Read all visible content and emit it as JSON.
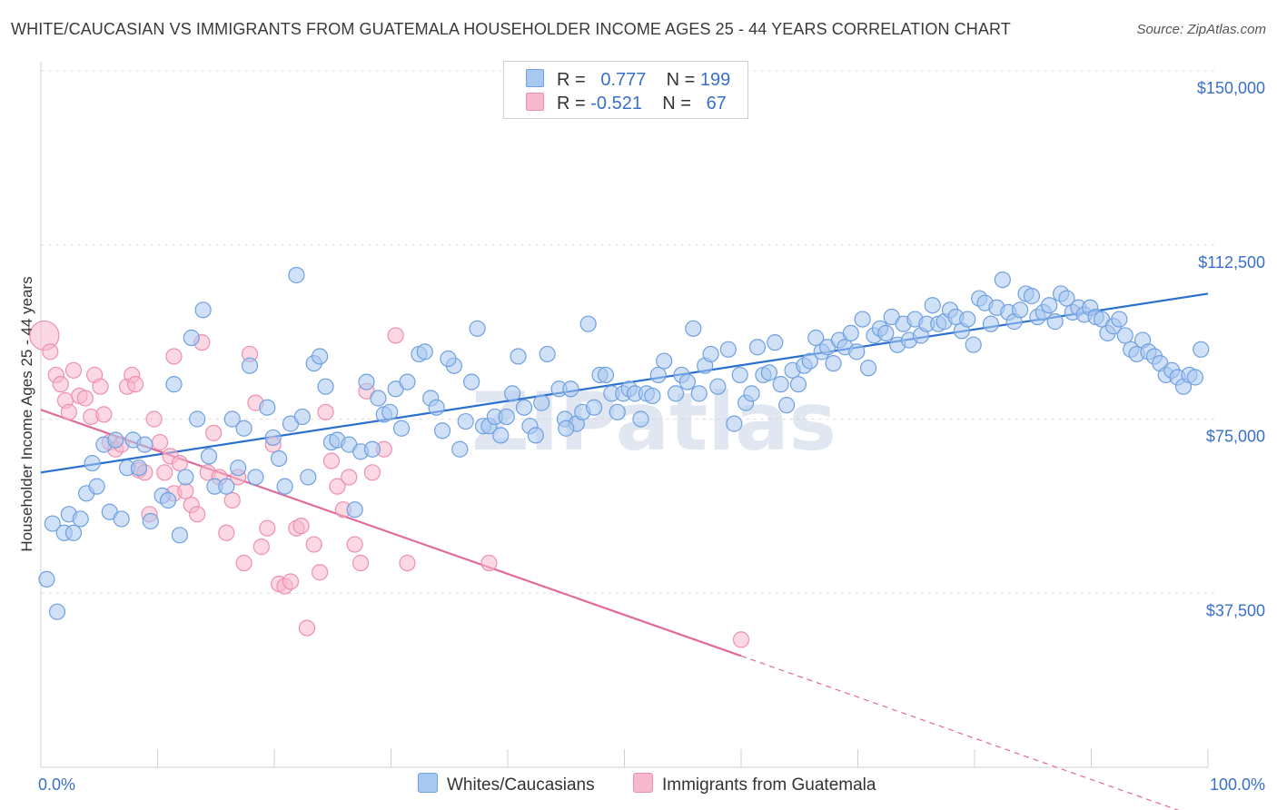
{
  "header": {
    "title": "WHITE/CAUCASIAN VS IMMIGRANTS FROM GUATEMALA HOUSEHOLDER INCOME AGES 25 - 44 YEARS CORRELATION CHART",
    "source": "Source: ZipAtlas.com"
  },
  "legend": {
    "rows": [
      {
        "r_label": "R =",
        "r_value": "0.777",
        "n_label": "N =",
        "n_value": "199",
        "color": "#a9c8f0"
      },
      {
        "r_label": "R =",
        "r_value": "-0.521",
        "n_label": "N =",
        "n_value": "67",
        "color": "#f7b8cb"
      }
    ]
  },
  "bottom_legend": [
    {
      "label": "Whites/Caucasians",
      "color": "#a9c8f0"
    },
    {
      "label": "Immigrants from Guatemala",
      "color": "#f7b8cb"
    }
  ],
  "chart_data": {
    "type": "scatter",
    "ylabel": "Householder Income Ages 25 - 44 years",
    "xlim": [
      0,
      100
    ],
    "ylim": [
      0,
      155000
    ],
    "x_tick_labels": [
      "0.0%",
      "100.0%"
    ],
    "y_ticks": [
      {
        "value": 37500,
        "label": "$37,500"
      },
      {
        "value": 75000,
        "label": "$75,000"
      },
      {
        "value": 112500,
        "label": "$112,500"
      },
      {
        "value": 150000,
        "label": "$150,000"
      }
    ],
    "grid": true,
    "watermark": "ZIPatlas",
    "series": [
      {
        "name": "Whites/Caucasians",
        "color": "#6fa0e0",
        "fill": "#a9c8f0",
        "trend": {
          "x0": 0,
          "y0": 63500,
          "x1": 100,
          "y1": 102000
        },
        "points": [
          [
            0.5,
            40500
          ],
          [
            1.0,
            52500
          ],
          [
            1.4,
            33500
          ],
          [
            2.0,
            50500
          ],
          [
            2.4,
            54500
          ],
          [
            2.8,
            50500
          ],
          [
            3.4,
            53500
          ],
          [
            3.9,
            59000
          ],
          [
            4.4,
            65500
          ],
          [
            4.8,
            60500
          ],
          [
            5.4,
            69500
          ],
          [
            5.9,
            55000
          ],
          [
            6.4,
            70500
          ],
          [
            6.9,
            53500
          ],
          [
            7.4,
            64500
          ],
          [
            7.9,
            70500
          ],
          [
            8.4,
            64500
          ],
          [
            8.9,
            69500
          ],
          [
            9.4,
            53000
          ],
          [
            10.4,
            58500
          ],
          [
            10.9,
            57500
          ],
          [
            11.4,
            82500
          ],
          [
            11.9,
            50000
          ],
          [
            12.4,
            62500
          ],
          [
            12.9,
            92500
          ],
          [
            13.9,
            98500
          ],
          [
            13.4,
            75000
          ],
          [
            14.4,
            67000
          ],
          [
            14.9,
            60500
          ],
          [
            15.9,
            60500
          ],
          [
            16.4,
            75000
          ],
          [
            16.9,
            64500
          ],
          [
            17.4,
            73000
          ],
          [
            17.9,
            86500
          ],
          [
            18.4,
            62500
          ],
          [
            19.4,
            77500
          ],
          [
            19.9,
            71000
          ],
          [
            20.4,
            66500
          ],
          [
            20.9,
            60500
          ],
          [
            21.4,
            74000
          ],
          [
            21.9,
            106000
          ],
          [
            22.4,
            75500
          ],
          [
            22.9,
            62500
          ],
          [
            23.4,
            87000
          ],
          [
            23.9,
            88500
          ],
          [
            24.4,
            82000
          ],
          [
            24.9,
            70000
          ],
          [
            25.4,
            70500
          ],
          [
            26.4,
            69500
          ],
          [
            26.9,
            55500
          ],
          [
            27.4,
            68000
          ],
          [
            27.9,
            83000
          ],
          [
            28.4,
            68500
          ],
          [
            28.9,
            79500
          ],
          [
            29.4,
            76000
          ],
          [
            29.9,
            76500
          ],
          [
            30.4,
            81500
          ],
          [
            30.9,
            73000
          ],
          [
            31.4,
            83000
          ],
          [
            32.4,
            89000
          ],
          [
            32.9,
            89500
          ],
          [
            33.4,
            79500
          ],
          [
            33.9,
            77500
          ],
          [
            34.4,
            72500
          ],
          [
            35.4,
            86500
          ],
          [
            35.9,
            68500
          ],
          [
            36.4,
            74500
          ],
          [
            36.9,
            83000
          ],
          [
            37.4,
            94500
          ],
          [
            37.9,
            73500
          ],
          [
            38.4,
            73500
          ],
          [
            38.9,
            75500
          ],
          [
            39.4,
            71500
          ],
          [
            39.9,
            75500
          ],
          [
            40.4,
            80500
          ],
          [
            40.9,
            88500
          ],
          [
            41.4,
            77500
          ],
          [
            41.9,
            73500
          ],
          [
            42.4,
            71500
          ],
          [
            42.9,
            78500
          ],
          [
            43.4,
            89000
          ],
          [
            44.4,
            81500
          ],
          [
            44.9,
            75000
          ],
          [
            45.4,
            81500
          ],
          [
            45.9,
            74000
          ],
          [
            46.4,
            76500
          ],
          [
            46.9,
            95500
          ],
          [
            47.4,
            77500
          ],
          [
            47.9,
            84500
          ],
          [
            48.4,
            84500
          ],
          [
            48.9,
            80500
          ],
          [
            49.4,
            76500
          ],
          [
            49.9,
            80500
          ],
          [
            50.4,
            81500
          ],
          [
            50.9,
            80500
          ],
          [
            51.4,
            75000
          ],
          [
            51.9,
            80500
          ],
          [
            52.4,
            80000
          ],
          [
            52.9,
            84500
          ],
          [
            53.4,
            87500
          ],
          [
            54.4,
            80500
          ],
          [
            54.9,
            84500
          ],
          [
            55.4,
            83000
          ],
          [
            55.9,
            94500
          ],
          [
            56.4,
            80500
          ],
          [
            56.9,
            86500
          ],
          [
            57.4,
            89000
          ],
          [
            58.9,
            90000
          ],
          [
            59.4,
            74000
          ],
          [
            59.9,
            84500
          ],
          [
            60.4,
            78500
          ],
          [
            60.9,
            80500
          ],
          [
            61.4,
            90500
          ],
          [
            61.9,
            84500
          ],
          [
            62.4,
            85000
          ],
          [
            62.9,
            91500
          ],
          [
            63.4,
            82500
          ],
          [
            63.9,
            78000
          ],
          [
            64.4,
            85500
          ],
          [
            64.9,
            82500
          ],
          [
            65.4,
            86500
          ],
          [
            65.9,
            87500
          ],
          [
            66.4,
            92500
          ],
          [
            66.9,
            89500
          ],
          [
            67.4,
            90500
          ],
          [
            67.9,
            87000
          ],
          [
            68.4,
            92000
          ],
          [
            68.9,
            90500
          ],
          [
            69.4,
            93500
          ],
          [
            69.9,
            89500
          ],
          [
            70.4,
            96500
          ],
          [
            70.9,
            86000
          ],
          [
            71.4,
            93000
          ],
          [
            71.9,
            94500
          ],
          [
            72.4,
            93500
          ],
          [
            72.9,
            97000
          ],
          [
            73.4,
            91000
          ],
          [
            73.9,
            95500
          ],
          [
            74.4,
            92000
          ],
          [
            74.9,
            96500
          ],
          [
            75.4,
            93000
          ],
          [
            75.9,
            95500
          ],
          [
            76.4,
            99500
          ],
          [
            76.9,
            95500
          ],
          [
            77.4,
            96000
          ],
          [
            77.9,
            98500
          ],
          [
            78.4,
            97000
          ],
          [
            78.9,
            94000
          ],
          [
            79.4,
            96500
          ],
          [
            79.9,
            91000
          ],
          [
            80.4,
            101000
          ],
          [
            80.9,
            100000
          ],
          [
            81.4,
            95500
          ],
          [
            81.9,
            99000
          ],
          [
            82.4,
            105000
          ],
          [
            82.9,
            98000
          ],
          [
            83.4,
            96000
          ],
          [
            83.9,
            98500
          ],
          [
            84.4,
            102000
          ],
          [
            84.9,
            101500
          ],
          [
            85.4,
            97000
          ],
          [
            85.9,
            98000
          ],
          [
            86.4,
            99500
          ],
          [
            86.9,
            96000
          ],
          [
            87.4,
            102000
          ],
          [
            87.9,
            101000
          ],
          [
            88.4,
            98000
          ],
          [
            88.9,
            99000
          ],
          [
            89.4,
            97500
          ],
          [
            89.9,
            99000
          ],
          [
            90.4,
            97000
          ],
          [
            90.9,
            96500
          ],
          [
            91.4,
            93500
          ],
          [
            91.9,
            95000
          ],
          [
            92.4,
            96500
          ],
          [
            92.9,
            93000
          ],
          [
            93.4,
            90000
          ],
          [
            93.9,
            89000
          ],
          [
            94.4,
            92000
          ],
          [
            94.9,
            89500
          ],
          [
            95.4,
            88500
          ],
          [
            95.9,
            87000
          ],
          [
            96.4,
            84500
          ],
          [
            96.9,
            85500
          ],
          [
            97.4,
            84000
          ],
          [
            97.9,
            82000
          ],
          [
            98.4,
            84500
          ],
          [
            98.9,
            84000
          ],
          [
            99.4,
            90000
          ],
          [
            34.9,
            88000
          ],
          [
            45.0,
            73000
          ],
          [
            58.0,
            82000
          ]
        ]
      },
      {
        "name": "Immigrants from Guatemala",
        "color": "#ee8fb0",
        "fill": "#f7b8cb",
        "trend": {
          "x0": 0,
          "y0": 77000,
          "x1": 60,
          "y1": 24000
        },
        "trend_dashed": {
          "x0": 60,
          "y0": 24000,
          "x1": 100,
          "y1": -11500
        },
        "points": [
          [
            0.3,
            93000
          ],
          [
            0.8,
            89500
          ],
          [
            1.3,
            84500
          ],
          [
            1.7,
            82500
          ],
          [
            2.1,
            79000
          ],
          [
            2.4,
            76500
          ],
          [
            2.8,
            85500
          ],
          [
            3.3,
            80000
          ],
          [
            3.8,
            79500
          ],
          [
            4.3,
            75500
          ],
          [
            4.6,
            84500
          ],
          [
            5.1,
            82000
          ],
          [
            5.4,
            76000
          ],
          [
            5.9,
            70000
          ],
          [
            6.4,
            68500
          ],
          [
            6.9,
            69500
          ],
          [
            7.4,
            82000
          ],
          [
            7.8,
            84500
          ],
          [
            8.1,
            82500
          ],
          [
            8.4,
            64000
          ],
          [
            8.9,
            63500
          ],
          [
            9.3,
            54500
          ],
          [
            9.7,
            75000
          ],
          [
            10.2,
            70000
          ],
          [
            10.6,
            63500
          ],
          [
            11.1,
            67000
          ],
          [
            11.4,
            59000
          ],
          [
            11.9,
            65500
          ],
          [
            12.4,
            59500
          ],
          [
            12.9,
            56500
          ],
          [
            13.4,
            54500
          ],
          [
            13.8,
            91500
          ],
          [
            14.3,
            63500
          ],
          [
            14.8,
            72000
          ],
          [
            15.3,
            62500
          ],
          [
            15.9,
            50500
          ],
          [
            16.4,
            57500
          ],
          [
            16.9,
            62500
          ],
          [
            17.4,
            44000
          ],
          [
            17.9,
            89000
          ],
          [
            18.4,
            78500
          ],
          [
            18.9,
            47500
          ],
          [
            19.4,
            51500
          ],
          [
            19.9,
            69500
          ],
          [
            20.4,
            39500
          ],
          [
            20.9,
            39000
          ],
          [
            21.4,
            40000
          ],
          [
            21.9,
            51500
          ],
          [
            22.3,
            52000
          ],
          [
            22.8,
            30000
          ],
          [
            23.4,
            48000
          ],
          [
            23.9,
            42000
          ],
          [
            24.4,
            76500
          ],
          [
            24.9,
            66000
          ],
          [
            25.4,
            60500
          ],
          [
            25.9,
            55500
          ],
          [
            26.4,
            62500
          ],
          [
            26.9,
            48000
          ],
          [
            27.4,
            44000
          ],
          [
            27.9,
            81000
          ],
          [
            28.4,
            63500
          ],
          [
            29.4,
            68500
          ],
          [
            30.4,
            93000
          ],
          [
            31.4,
            44000
          ],
          [
            38.4,
            44000
          ],
          [
            60.0,
            27500
          ],
          [
            11.4,
            88500
          ]
        ]
      }
    ]
  }
}
